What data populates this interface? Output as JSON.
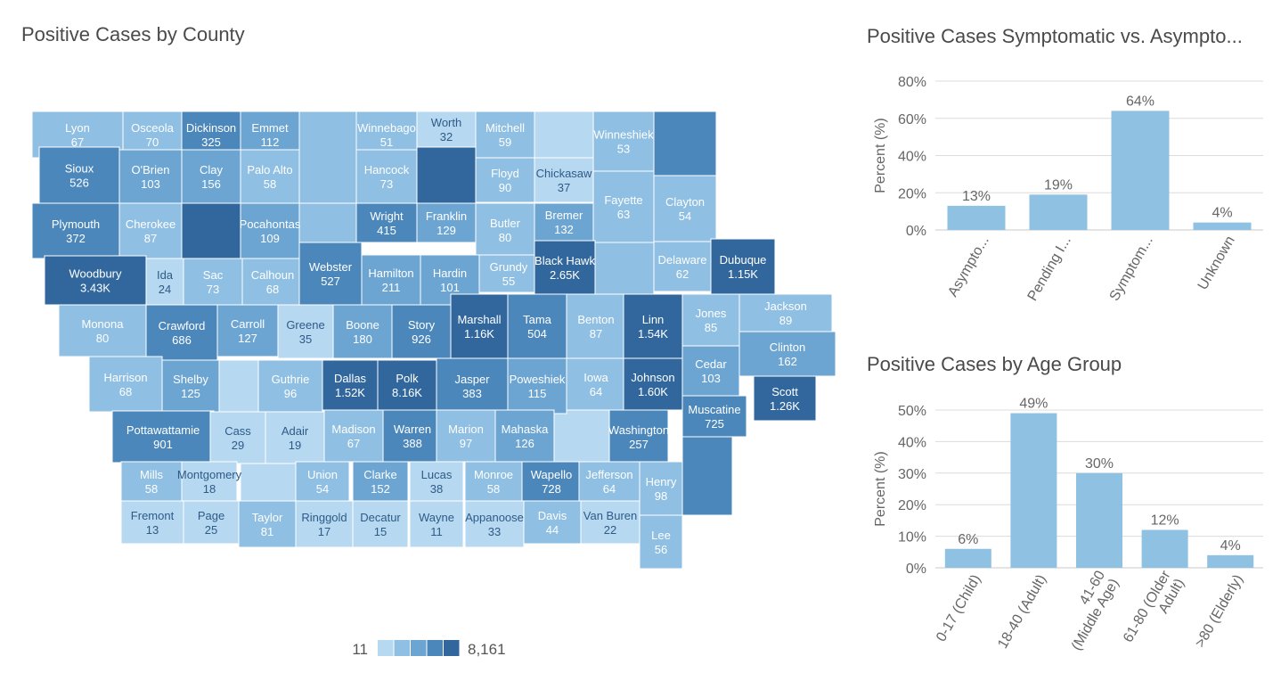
{
  "titles": {
    "map": "Positive Cases by County",
    "symptomatic": "Positive Cases Symptomatic vs. Asympto...",
    "age": "Positive Cases by Age Group"
  },
  "colors": {
    "light": "#b7d8f1",
    "mid1": "#8fbfe2",
    "mid2": "#6ca5d2",
    "mid3": "#4b87bb",
    "dark": "#31679c",
    "bar": "#8fc1e3"
  },
  "chart_data": [
    {
      "type": "heatmap",
      "title": "Positive Cases by County",
      "legend": {
        "min_label": "11",
        "max_label": "8,161"
      },
      "counties": [
        {
          "name": "Lyon",
          "value": "67"
        },
        {
          "name": "Osceola",
          "value": "70"
        },
        {
          "name": "Dickinson",
          "value": "325"
        },
        {
          "name": "Emmet",
          "value": "112"
        },
        {
          "name": "Winnebago",
          "value": "51"
        },
        {
          "name": "Worth",
          "value": "32"
        },
        {
          "name": "Mitchell",
          "value": "59"
        },
        {
          "name": "Winneshiek",
          "value": "53"
        },
        {
          "name": "Sioux",
          "value": "526"
        },
        {
          "name": "O'Brien",
          "value": "103"
        },
        {
          "name": "Clay",
          "value": "156"
        },
        {
          "name": "Palo Alto",
          "value": "58"
        },
        {
          "name": "Hancock",
          "value": "73"
        },
        {
          "name": "Floyd",
          "value": "90"
        },
        {
          "name": "Chickasaw",
          "value": "37"
        },
        {
          "name": "Fayette",
          "value": "63"
        },
        {
          "name": "Clayton",
          "value": "54"
        },
        {
          "name": "Plymouth",
          "value": "372"
        },
        {
          "name": "Cherokee",
          "value": "87"
        },
        {
          "name": "Pocahontas",
          "value": "109"
        },
        {
          "name": "Wright",
          "value": "415"
        },
        {
          "name": "Franklin",
          "value": "129"
        },
        {
          "name": "Butler",
          "value": "80"
        },
        {
          "name": "Bremer",
          "value": "132"
        },
        {
          "name": "Woodbury",
          "value": "3.43K"
        },
        {
          "name": "Ida",
          "value": "24"
        },
        {
          "name": "Sac",
          "value": "73"
        },
        {
          "name": "Calhoun",
          "value": "68"
        },
        {
          "name": "Webster",
          "value": "527"
        },
        {
          "name": "Hamilton",
          "value": "211"
        },
        {
          "name": "Hardin",
          "value": "101"
        },
        {
          "name": "Grundy",
          "value": "55"
        },
        {
          "name": "Black Hawk",
          "value": "2.65K"
        },
        {
          "name": "Delaware",
          "value": "62"
        },
        {
          "name": "Dubuque",
          "value": "1.15K"
        },
        {
          "name": "Monona",
          "value": "80"
        },
        {
          "name": "Crawford",
          "value": "686"
        },
        {
          "name": "Carroll",
          "value": "127"
        },
        {
          "name": "Greene",
          "value": "35"
        },
        {
          "name": "Boone",
          "value": "180"
        },
        {
          "name": "Story",
          "value": "926"
        },
        {
          "name": "Marshall",
          "value": "1.16K"
        },
        {
          "name": "Tama",
          "value": "504"
        },
        {
          "name": "Benton",
          "value": "87"
        },
        {
          "name": "Linn",
          "value": "1.54K"
        },
        {
          "name": "Jones",
          "value": "85"
        },
        {
          "name": "Jackson",
          "value": "89"
        },
        {
          "name": "Clinton",
          "value": "162"
        },
        {
          "name": "Harrison",
          "value": "68"
        },
        {
          "name": "Shelby",
          "value": "125"
        },
        {
          "name": "Guthrie",
          "value": "96"
        },
        {
          "name": "Dallas",
          "value": "1.52K"
        },
        {
          "name": "Polk",
          "value": "8.16K"
        },
        {
          "name": "Jasper",
          "value": "383"
        },
        {
          "name": "Poweshiek",
          "value": "115"
        },
        {
          "name": "Iowa",
          "value": "64"
        },
        {
          "name": "Johnson",
          "value": "1.60K"
        },
        {
          "name": "Cedar",
          "value": "103"
        },
        {
          "name": "Scott",
          "value": "1.26K"
        },
        {
          "name": "Muscatine",
          "value": "725"
        },
        {
          "name": "Pottawattamie",
          "value": "901"
        },
        {
          "name": "Cass",
          "value": "29"
        },
        {
          "name": "Adair",
          "value": "19"
        },
        {
          "name": "Madison",
          "value": "67"
        },
        {
          "name": "Warren",
          "value": "388"
        },
        {
          "name": "Marion",
          "value": "97"
        },
        {
          "name": "Mahaska",
          "value": "126"
        },
        {
          "name": "Washington",
          "value": "257"
        },
        {
          "name": "Mills",
          "value": "58"
        },
        {
          "name": "Montgomery",
          "value": "18"
        },
        {
          "name": "Union",
          "value": "54"
        },
        {
          "name": "Clarke",
          "value": "152"
        },
        {
          "name": "Lucas",
          "value": "38"
        },
        {
          "name": "Monroe",
          "value": "58"
        },
        {
          "name": "Wapello",
          "value": "728"
        },
        {
          "name": "Jefferson",
          "value": "64"
        },
        {
          "name": "Henry",
          "value": "98"
        },
        {
          "name": "Fremont",
          "value": "13"
        },
        {
          "name": "Page",
          "value": "25"
        },
        {
          "name": "Taylor",
          "value": "81"
        },
        {
          "name": "Ringgold",
          "value": "17"
        },
        {
          "name": "Decatur",
          "value": "15"
        },
        {
          "name": "Wayne",
          "value": "11"
        },
        {
          "name": "Appanoose",
          "value": "33"
        },
        {
          "name": "Davis",
          "value": "44"
        },
        {
          "name": "Van Buren",
          "value": "22"
        },
        {
          "name": "Lee",
          "value": "56"
        }
      ]
    },
    {
      "type": "bar",
      "title": "Positive Cases Symptomatic vs. Asympto...",
      "ylabel": "Percent (%)",
      "ylim": [
        0,
        80
      ],
      "yticks": [
        "0%",
        "20%",
        "40%",
        "60%",
        "80%"
      ],
      "categories": [
        "Asympto...",
        "Pending I...",
        "Symptom...",
        "Unknown"
      ],
      "values": [
        13,
        19,
        64,
        4
      ],
      "value_labels": [
        "13%",
        "19%",
        "64%",
        "4%"
      ]
    },
    {
      "type": "bar",
      "title": "Positive Cases by Age Group",
      "ylabel": "Percent (%)",
      "ylim": [
        0,
        50
      ],
      "yticks": [
        "0%",
        "10%",
        "20%",
        "30%",
        "40%",
        "50%"
      ],
      "categories": [
        [
          "0-17 (Child)"
        ],
        [
          "18-40 (Adult)"
        ],
        [
          "41-60",
          "(Middle Age)"
        ],
        [
          "61-80 (Older",
          "Adult)"
        ],
        [
          ">80 (Elderly)"
        ]
      ],
      "values": [
        6,
        49,
        30,
        12,
        4
      ],
      "value_labels": [
        "6%",
        "49%",
        "30%",
        "12%",
        "4%"
      ]
    }
  ]
}
